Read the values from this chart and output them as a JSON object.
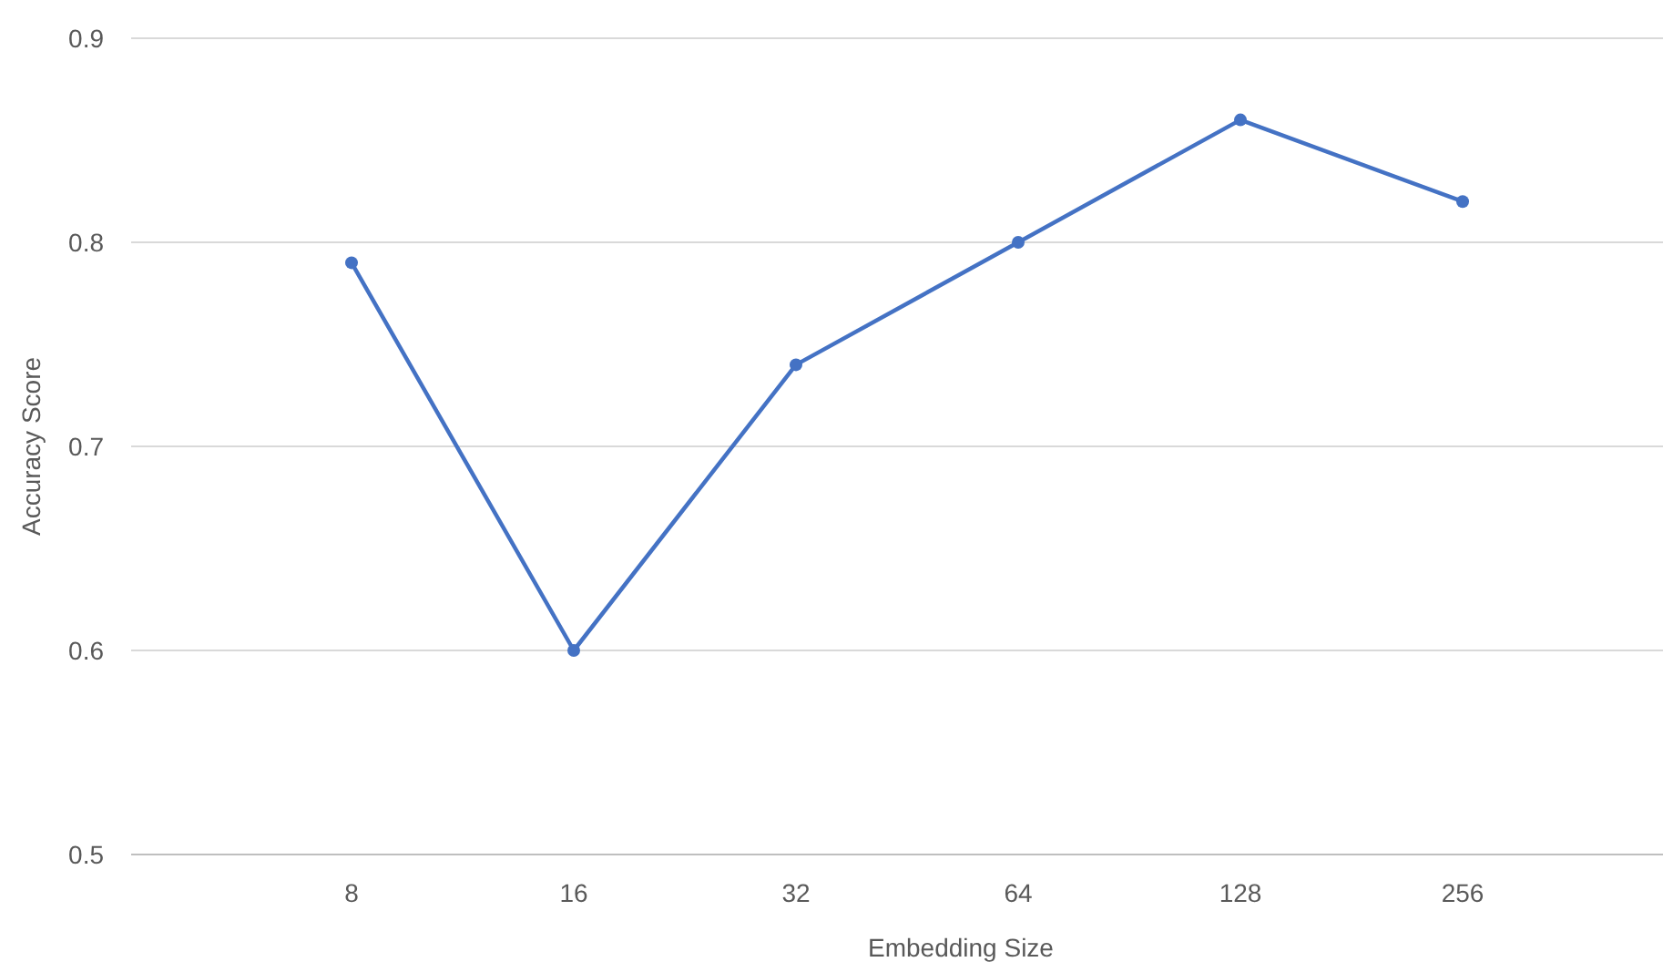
{
  "chart_data": {
    "type": "line",
    "xlabel": "Embedding Size",
    "ylabel": "Accuracy Score",
    "categories": [
      "8",
      "16",
      "32",
      "64",
      "128",
      "256"
    ],
    "series": [
      {
        "color": "#4472c4",
        "values": [
          0.79,
          0.6,
          0.74,
          0.8,
          0.86,
          0.82
        ]
      }
    ],
    "ylim": [
      0.5,
      0.9
    ],
    "yticks": [
      0.5,
      0.6,
      0.7,
      0.8,
      0.9
    ],
    "grid": "y",
    "marker": "circle",
    "line_style": "solid"
  }
}
